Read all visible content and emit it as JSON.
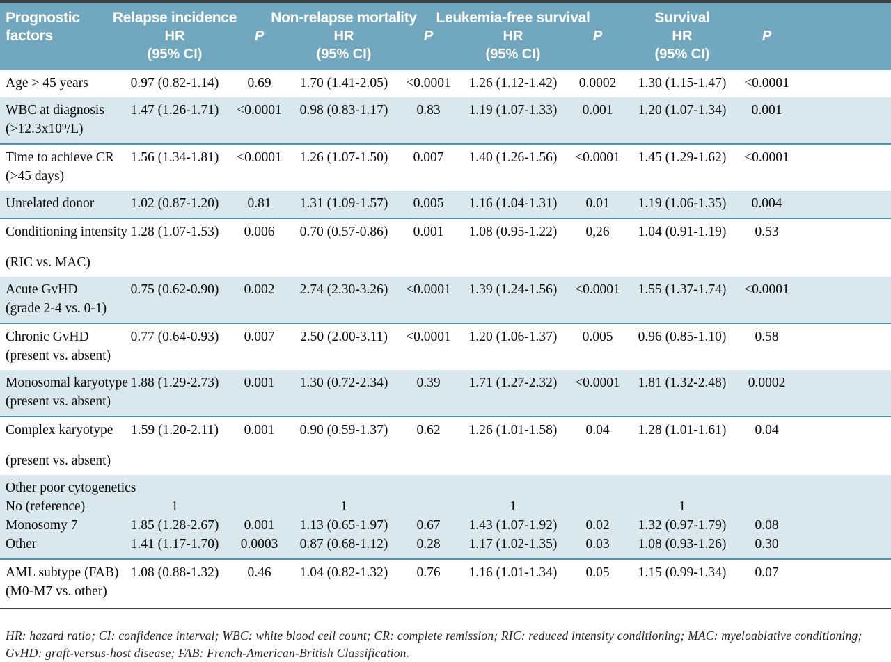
{
  "table": {
    "header": {
      "factors_label": "Prognostic factors",
      "groups": [
        {
          "title": "Relapse incidence",
          "hr_label": "HR",
          "ci_label": "(95% CI)",
          "p_label": "P"
        },
        {
          "title": "Non-relapse mortality",
          "hr_label": "HR",
          "ci_label": "(95% CI)",
          "p_label": "P"
        },
        {
          "title": "Leukemia-free survival",
          "hr_label": "HR",
          "ci_label": "(95% CI)",
          "p_label": "P"
        },
        {
          "title": "Survival",
          "hr_label": "HR",
          "ci_label": "(95% CI)",
          "p_label": "P"
        }
      ]
    },
    "rows": [
      {
        "shaded": false,
        "spread": false,
        "lines": [
          {
            "label": "Age > 45 years",
            "cells": [
              "0.97 (0.82-1.14)",
              "0.69",
              "1.70 (1.41-2.05)",
              "<0.0001",
              "1.26 (1.12-1.42)",
              "0.0002",
              "1.30 (1.15-1.47)",
              "<0.0001"
            ]
          }
        ]
      },
      {
        "shaded": true,
        "spread": false,
        "lines": [
          {
            "label": "WBC at diagnosis",
            "cells": [
              "1.47 (1.26-1.71)",
              "<0.0001",
              "0.98 (0.83-1.17)",
              "0.83",
              "1.19 (1.07-1.33)",
              "0.001",
              "1.20 (1.07-1.34)",
              "0.001"
            ]
          },
          {
            "label": "(>12.3x10⁹/L)",
            "cells": [
              "",
              "",
              "",
              "",
              "",
              "",
              "",
              ""
            ]
          }
        ]
      },
      {
        "shaded": false,
        "spread": false,
        "lines": [
          {
            "label": "Time to achieve CR",
            "cells": [
              "1.56 (1.34-1.81)",
              "<0.0001",
              "1.26 (1.07-1.50)",
              "0.007",
              "1.40 (1.26-1.56)",
              "<0.0001",
              "1.45 (1.29-1.62)",
              "<0.0001"
            ]
          },
          {
            "label": "(>45 days)",
            "cells": [
              "",
              "",
              "",
              "",
              "",
              "",
              "",
              ""
            ]
          }
        ]
      },
      {
        "shaded": true,
        "spread": false,
        "lines": [
          {
            "label": "Unrelated donor",
            "cells": [
              "1.02 (0.87-1.20)",
              "0.81",
              "1.31 (1.09-1.57)",
              "0.005",
              "1.16 (1.04-1.31)",
              "0.01",
              "1.19 (1.06-1.35)",
              "0.004"
            ]
          }
        ]
      },
      {
        "shaded": false,
        "spread": true,
        "lines": [
          {
            "label": "Conditioning intensity",
            "cells": [
              "1.28 (1.07-1.53)",
              "0.006",
              "0.70 (0.57-0.86)",
              "0.001",
              "1.08 (0.95-1.22)",
              "0,26",
              "1.04 (0.91-1.19)",
              "0.53"
            ]
          },
          {
            "label": "(RIC vs. MAC)",
            "cells": [
              "",
              "",
              "",
              "",
              "",
              "",
              "",
              ""
            ]
          }
        ]
      },
      {
        "shaded": true,
        "spread": false,
        "lines": [
          {
            "label": "Acute GvHD",
            "cells": [
              "0.75 (0.62-0.90)",
              "0.002",
              "2.74 (2.30-3.26)",
              "<0.0001",
              "1.39 (1.24-1.56)",
              "<0.0001",
              "1.55 (1.37-1.74)",
              "<0.0001"
            ]
          },
          {
            "label": "(grade 2-4 vs. 0-1)",
            "cells": [
              "",
              "",
              "",
              "",
              "",
              "",
              "",
              ""
            ]
          }
        ]
      },
      {
        "shaded": false,
        "spread": false,
        "lines": [
          {
            "label": "Chronic GvHD",
            "cells": [
              "0.77 (0.64-0.93)",
              "0.007",
              "2.50 (2.00-3.11)",
              "<0.0001",
              "1.20 (1.06-1.37)",
              "0.005",
              "0.96 (0.85-1.10)",
              "0.58"
            ]
          },
          {
            "label": "(present vs. absent)",
            "cells": [
              "",
              "",
              "",
              "",
              "",
              "",
              "",
              ""
            ]
          }
        ]
      },
      {
        "shaded": true,
        "spread": false,
        "lines": [
          {
            "label": "Monosomal karyotype",
            "cells": [
              "1.88 (1.29-2.73)",
              "0.001",
              "1.30 (0.72-2.34)",
              "0.39",
              "1.71 (1.27-2.32)",
              "<0.0001",
              "1.81 (1.32-2.48)",
              "0.0002"
            ]
          },
          {
            "label": "(present vs. absent)",
            "cells": [
              "",
              "",
              "",
              "",
              "",
              "",
              "",
              ""
            ]
          }
        ]
      },
      {
        "shaded": false,
        "spread": true,
        "lines": [
          {
            "label": "Complex karyotype",
            "cells": [
              "1.59 (1.20-2.11)",
              "0.001",
              "0.90 (0.59-1.37)",
              "0.62",
              "1.26 (1.01-1.58)",
              "0.04",
              "1.28 (1.01-1.61)",
              "0.04"
            ]
          },
          {
            "label": "(present vs. absent)",
            "cells": [
              "",
              "",
              "",
              "",
              "",
              "",
              "",
              ""
            ]
          }
        ]
      },
      {
        "shaded": true,
        "spread": false,
        "lines": [
          {
            "label": "Other poor cytogenetics",
            "cells": [
              "",
              "",
              "",
              "",
              "",
              "",
              "",
              ""
            ]
          },
          {
            "label": "No (reference)",
            "cells": [
              "1",
              "",
              "1",
              "",
              "1",
              "",
              "1",
              ""
            ]
          },
          {
            "label": "Monosomy 7",
            "cells": [
              "1.85 (1.28-2.67)",
              "0.001",
              "1.13 (0.65-1.97)",
              "0.67",
              "1.43 (1.07-1.92)",
              "0.02",
              "1.32 (0.97-1.79)",
              "0.08"
            ]
          },
          {
            "label": "Other",
            "cells": [
              "1.41 (1.17-1.70)",
              "0.0003",
              "0.87 (0.68-1.12)",
              "0.28",
              "1.17 (1.02-1.35)",
              "0.03",
              "1.08 (0.93-1.26)",
              "0.30"
            ]
          }
        ]
      },
      {
        "shaded": false,
        "spread": false,
        "lines": [
          {
            "label": "AML subtype (FAB)",
            "cells": [
              "1.08 (0.88-1.32)",
              "0.46",
              "1.04 (0.82-1.32)",
              "0.76",
              "1.16 (1.01-1.34)",
              "0.05",
              "1.15 (0.99-1.34)",
              "0.07"
            ]
          },
          {
            "label": "(M0-M7 vs. other)",
            "cells": [
              "",
              "",
              "",
              "",
              "",
              "",
              "",
              ""
            ]
          }
        ]
      }
    ],
    "footnote": "HR: hazard ratio; CI: confidence interval; WBC: white blood cell count; CR: complete remission; RIC: reduced intensity conditioning; MAC: myeloablative conditioning; GvHD: graft-versus-host disease; FAB: French-American-British Classification."
  },
  "colors": {
    "header_bg": "#72a7c0",
    "header_text": "#ffffff",
    "shaded_row_bg": "#d9e7ee",
    "shaded_row_border": "#4899b3",
    "top_border": "#3f3f3f",
    "body_text": "#0a0a0a"
  }
}
